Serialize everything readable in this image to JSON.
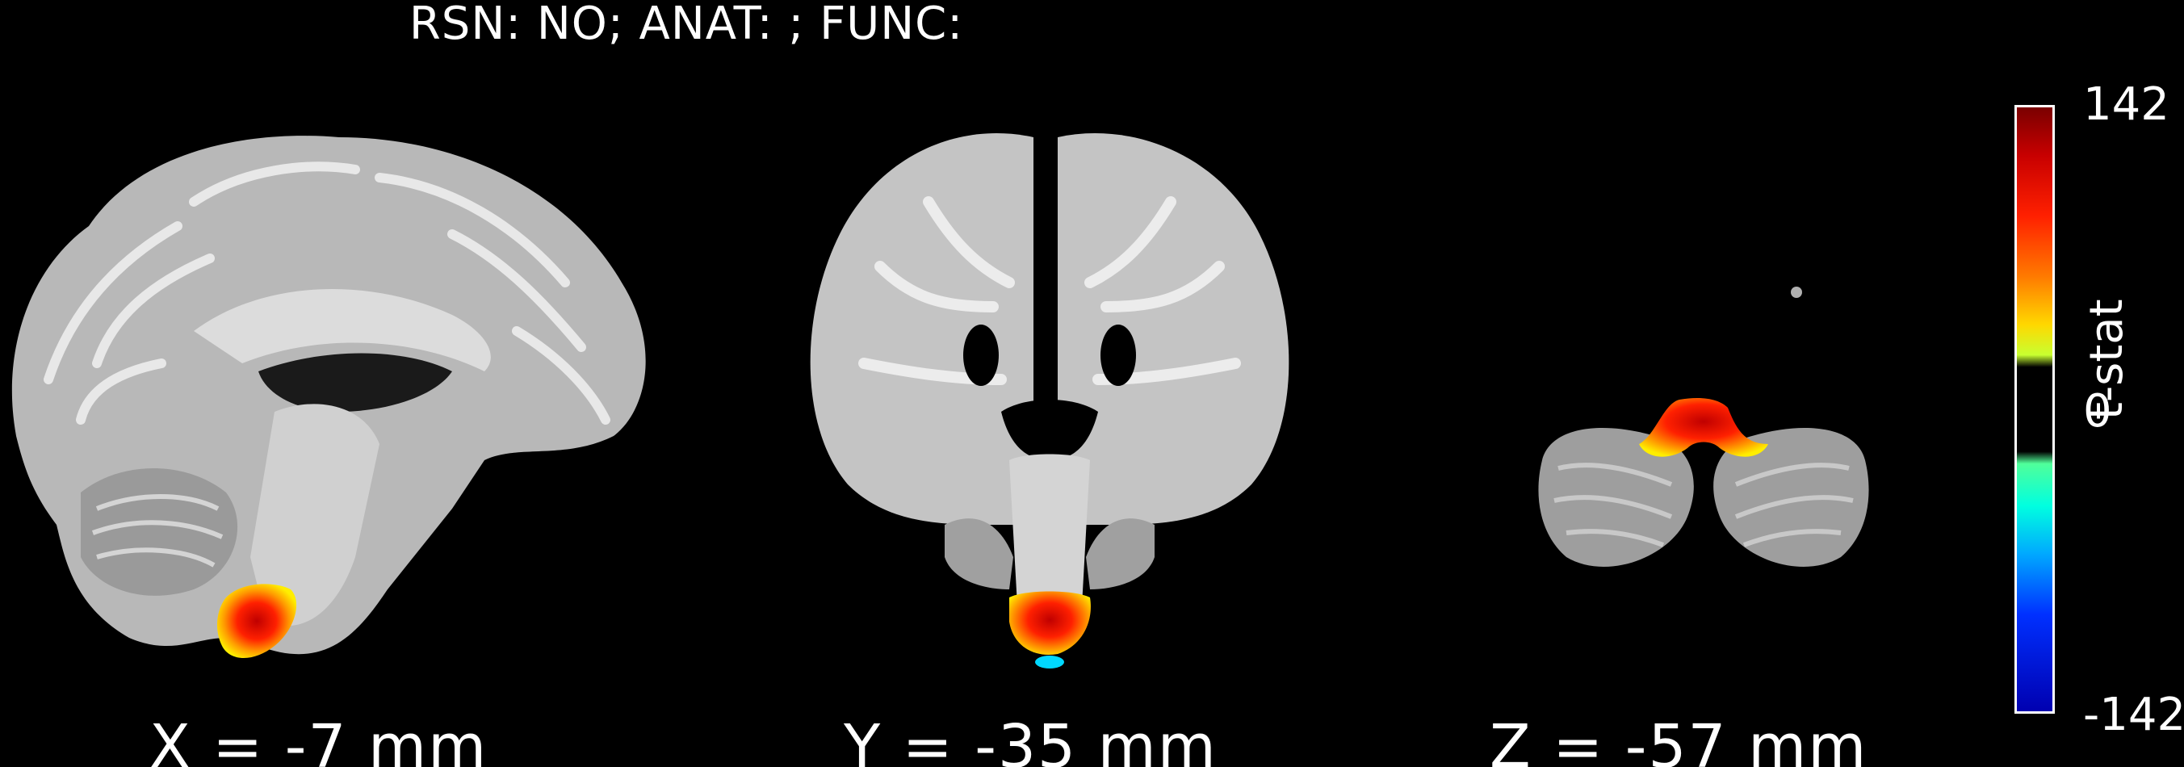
{
  "figure": {
    "title": "RSN: NO; ANAT: ; FUNC:",
    "views": [
      {
        "id": "sagittal",
        "label": "X = -7 mm"
      },
      {
        "id": "coronal",
        "label": "Y = -35 mm"
      },
      {
        "id": "axial",
        "label": "Z = -57 mm"
      }
    ],
    "colorbar": {
      "label": "t-stat",
      "max_tick": "142",
      "mid_tick": "0",
      "min_tick": "-142",
      "max_value": 142,
      "min_value": -142
    },
    "colors": {
      "background": "#000000",
      "text": "#ffffff",
      "brain_gray": "#9a9a9a",
      "activation_hot": "#ff2000",
      "activation_warm": "#ffd800",
      "activation_cold": "#00d8ff"
    }
  }
}
